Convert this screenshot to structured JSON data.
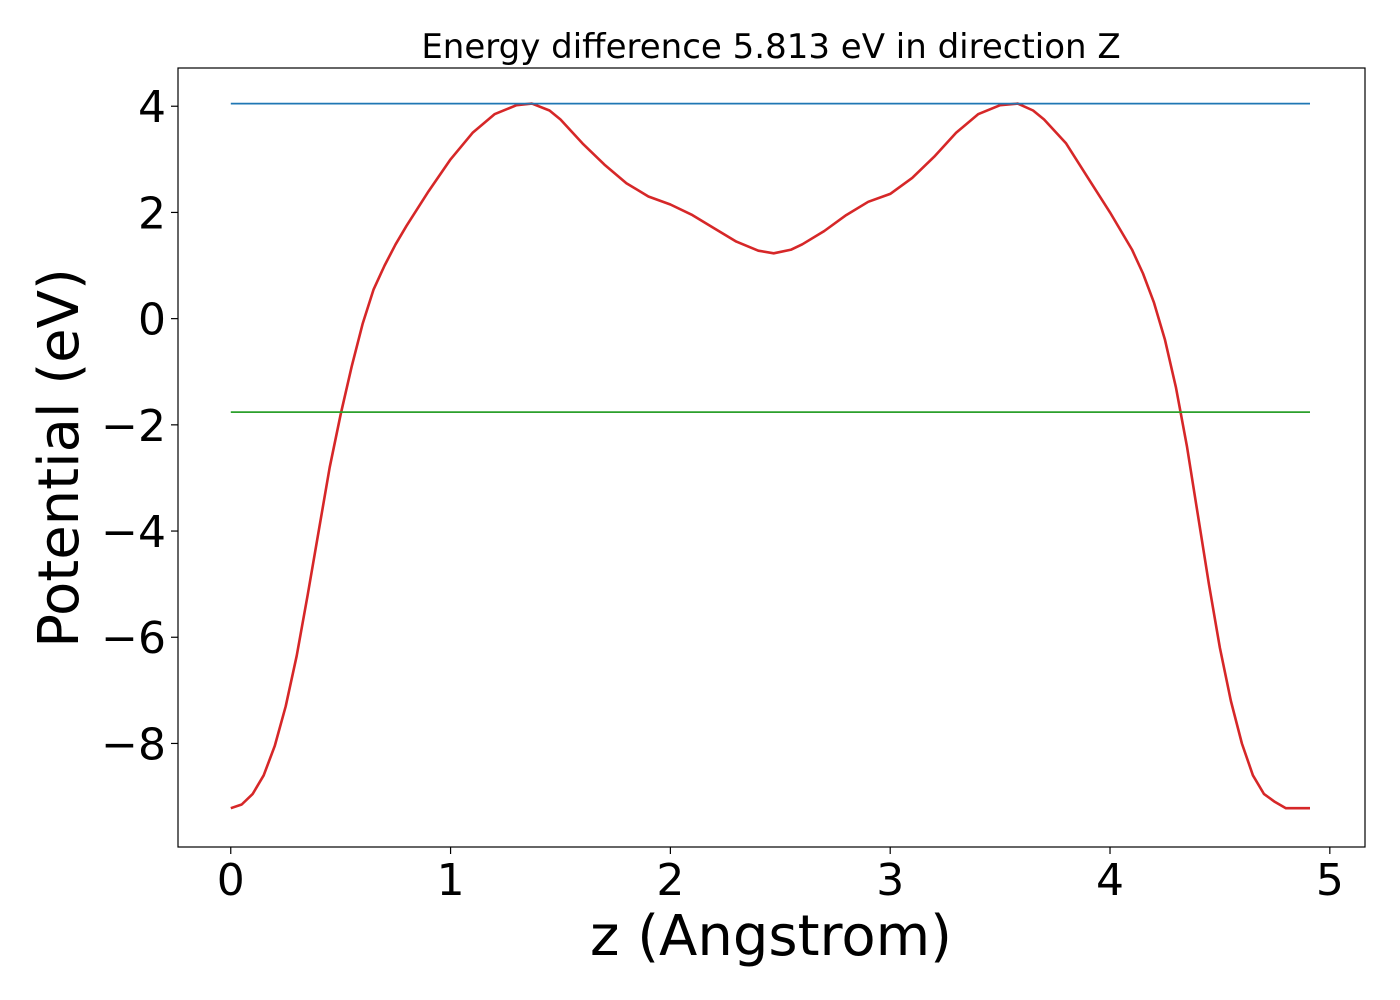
{
  "chart_data": {
    "type": "line",
    "title": "Energy difference 5.813 eV in direction Z",
    "xlabel": "z (Angstrom)",
    "ylabel": "Potential (eV)",
    "xlim": [
      -0.24,
      5.16
    ],
    "ylim": [
      -9.95,
      4.72
    ],
    "xticks": [
      0,
      1,
      2,
      3,
      4,
      5
    ],
    "xtick_labels": [
      "0",
      "1",
      "2",
      "3",
      "4",
      "5"
    ],
    "yticks": [
      -8,
      -6,
      -4,
      -2,
      0,
      2,
      4
    ],
    "ytick_labels": [
      "−8",
      "−6",
      "−4",
      "−2",
      "0",
      "2",
      "4"
    ],
    "grid": false,
    "series": [
      {
        "color": "#d62728",
        "x": [
          0.0,
          0.05,
          0.1,
          0.15,
          0.2,
          0.25,
          0.3,
          0.35,
          0.4,
          0.45,
          0.5,
          0.55,
          0.6,
          0.65,
          0.7,
          0.75,
          0.8,
          0.9,
          1.0,
          1.1,
          1.2,
          1.3,
          1.37,
          1.45,
          1.5,
          1.6,
          1.7,
          1.8,
          1.9,
          2.0,
          2.1,
          2.2,
          2.3,
          2.4,
          2.47,
          2.55,
          2.6,
          2.7,
          2.8,
          2.9,
          3.0,
          3.1,
          3.2,
          3.3,
          3.4,
          3.5,
          3.58,
          3.65,
          3.7,
          3.8,
          3.9,
          4.0,
          4.1,
          4.15,
          4.2,
          4.25,
          4.3,
          4.35,
          4.4,
          4.45,
          4.5,
          4.55,
          4.6,
          4.65,
          4.7,
          4.75,
          4.8,
          4.85,
          4.91
        ],
        "values": [
          -9.22,
          -9.15,
          -8.95,
          -8.6,
          -8.05,
          -7.3,
          -6.35,
          -5.2,
          -4.0,
          -2.8,
          -1.8,
          -0.9,
          -0.1,
          0.55,
          1.0,
          1.4,
          1.75,
          2.4,
          3.0,
          3.5,
          3.85,
          4.02,
          4.05,
          3.92,
          3.75,
          3.3,
          2.9,
          2.55,
          2.3,
          2.15,
          1.95,
          1.7,
          1.45,
          1.28,
          1.23,
          1.3,
          1.4,
          1.65,
          1.95,
          2.2,
          2.35,
          2.65,
          3.05,
          3.5,
          3.85,
          4.02,
          4.05,
          3.92,
          3.75,
          3.3,
          2.65,
          2.0,
          1.3,
          0.85,
          0.3,
          -0.4,
          -1.3,
          -2.4,
          -3.7,
          -5.0,
          -6.2,
          -7.2,
          -8.0,
          -8.6,
          -8.95,
          -9.1,
          -9.22,
          -9.22,
          -9.22
        ]
      },
      {
        "color": "#1f77b4",
        "x": [
          0.0,
          4.91
        ],
        "values": [
          4.05,
          4.05
        ]
      },
      {
        "color": "#2ca02c",
        "x": [
          0.0,
          4.91
        ],
        "values": [
          -1.76,
          -1.76
        ]
      }
    ]
  }
}
